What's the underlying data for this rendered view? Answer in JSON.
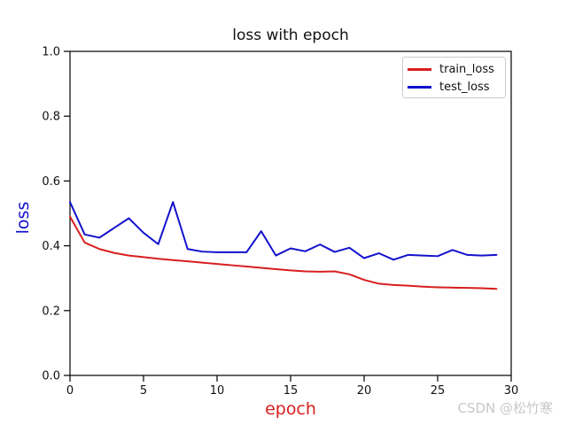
{
  "watermark": "CSDN @松竹寒",
  "chart_data": {
    "type": "line",
    "title": "loss with epoch",
    "xlabel": "epoch",
    "ylabel": "loss",
    "xlabel_color": "#d81e1e",
    "ylabel_color": "#1212cc",
    "axis_color": "#000000",
    "tick_label_color": "#111111",
    "grid": false,
    "legend_position": "upper right",
    "xlim": [
      0,
      30
    ],
    "ylim": [
      0.0,
      1.0
    ],
    "x": [
      0,
      1,
      2,
      3,
      4,
      5,
      6,
      7,
      8,
      9,
      10,
      11,
      12,
      13,
      14,
      15,
      16,
      17,
      18,
      19,
      20,
      21,
      22,
      23,
      24,
      25,
      26,
      27,
      28,
      29
    ],
    "xticks": {
      "values": [
        0,
        5,
        10,
        15,
        20,
        25,
        30
      ],
      "labels": [
        "0",
        "5",
        "10",
        "15",
        "20",
        "25",
        "30"
      ]
    },
    "yticks": {
      "values": [
        0.0,
        0.2,
        0.4,
        0.6,
        0.8,
        1.0
      ],
      "labels": [
        "0.0",
        "0.2",
        "0.4",
        "0.6",
        "0.8",
        "1.0"
      ]
    },
    "series": [
      {
        "name": "train_loss",
        "color": "#d81e1e",
        "values": [
          0.49,
          0.41,
          0.39,
          0.378,
          0.37,
          0.365,
          0.36,
          0.356,
          0.352,
          0.348,
          0.344,
          0.34,
          0.336,
          0.332,
          0.328,
          0.324,
          0.321,
          0.32,
          0.321,
          0.312,
          0.295,
          0.283,
          0.279,
          0.277,
          0.274,
          0.272,
          0.271,
          0.27,
          0.269,
          0.267
        ]
      },
      {
        "name": "test_loss",
        "color": "#1212cc",
        "values": [
          0.535,
          0.435,
          0.425,
          0.455,
          0.485,
          0.44,
          0.405,
          0.535,
          0.39,
          0.382,
          0.38,
          0.38,
          0.38,
          0.445,
          0.37,
          0.392,
          0.383,
          0.404,
          0.381,
          0.394,
          0.362,
          0.377,
          0.357,
          0.372,
          0.37,
          0.368,
          0.387,
          0.372,
          0.37,
          0.372
        ]
      }
    ]
  }
}
